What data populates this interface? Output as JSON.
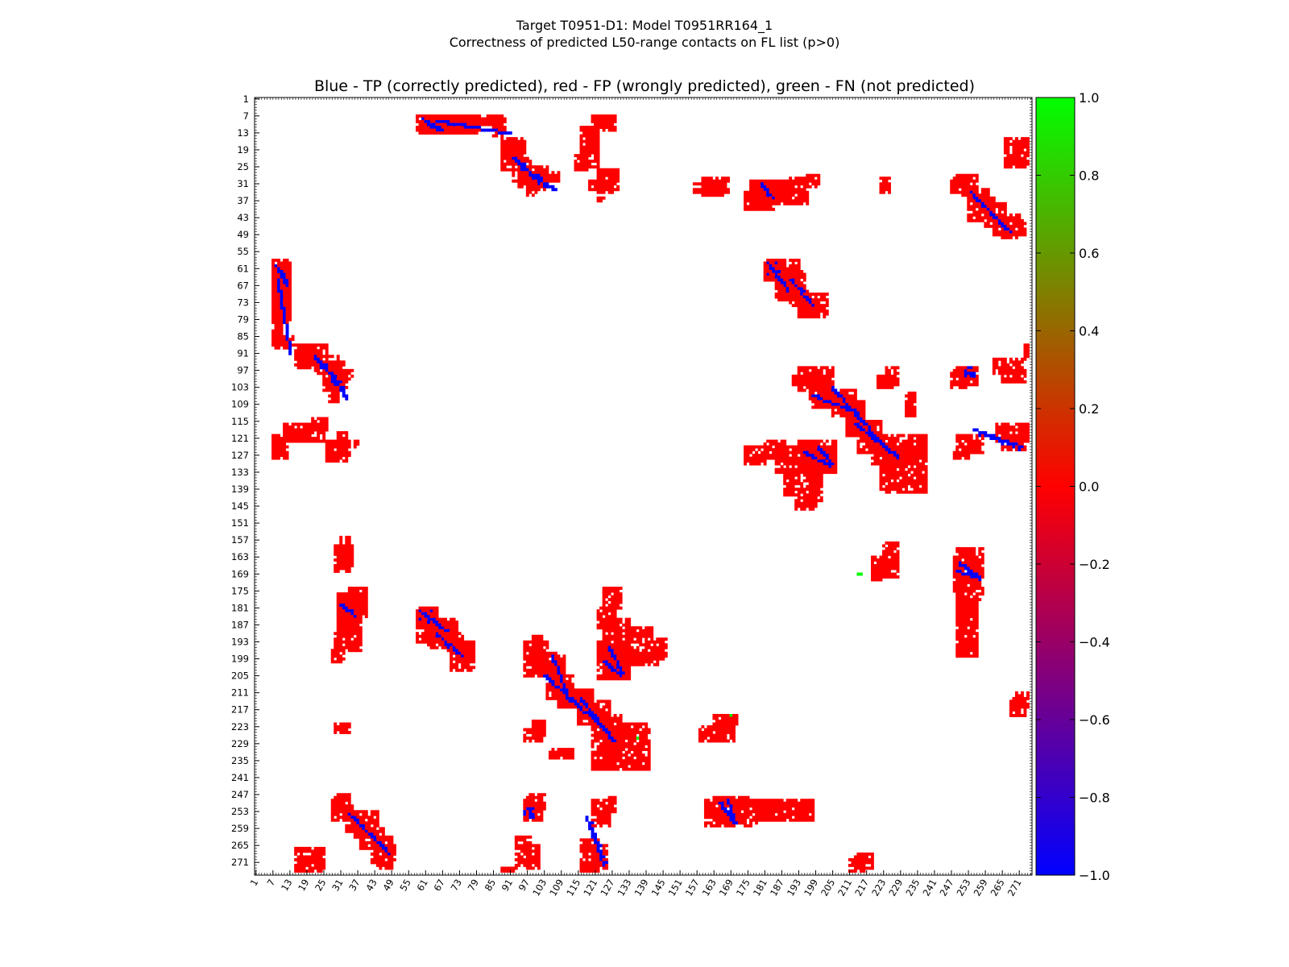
{
  "figure": {
    "suptitle_line1": "Target T0951-D1: Model T0951RR164_1",
    "suptitle_line2": "Correctness of predicted L50-range contacts on FL list (p>0)"
  },
  "chart_data": {
    "type": "heatmap",
    "title": "Blue - TP (correctly predicted), red - FP (wrongly predicted), green - FN (not predicted)",
    "xlabel": "",
    "ylabel": "",
    "xlim": [
      1,
      275
    ],
    "ylim": [
      1,
      275
    ],
    "y_inverted": true,
    "tick_labels": [
      "1",
      "7",
      "13",
      "19",
      "25",
      "31",
      "37",
      "43",
      "49",
      "55",
      "61",
      "67",
      "73",
      "79",
      "85",
      "91",
      "97",
      "103",
      "109",
      "115",
      "121",
      "127",
      "133",
      "139",
      "145",
      "151",
      "157",
      "163",
      "169",
      "175",
      "181",
      "187",
      "193",
      "199",
      "205",
      "211",
      "217",
      "223",
      "229",
      "235",
      "241",
      "247",
      "253",
      "259",
      "265",
      "271"
    ],
    "colorbar": {
      "min": -1.0,
      "max": 1.0,
      "ticks": [
        "1.0",
        "0.8",
        "0.6",
        "0.4",
        "0.2",
        "0.0",
        "−0.2",
        "−0.4",
        "−0.6",
        "−0.8",
        "−1.0"
      ],
      "colors": [
        "#00ff00",
        "#ff0000",
        "#0000ff"
      ]
    },
    "legend": {
      "TP": "#0000ff",
      "FP": "#ff0000",
      "FN": "#00ff00"
    },
    "point_value": {
      "FP": 0.0,
      "TP": -1.0,
      "FN": 1.0
    },
    "regions": [
      {
        "kind": "FP",
        "x": [
          58,
          80
        ],
        "y": [
          7,
          12
        ]
      },
      {
        "kind": "FP",
        "x": [
          62,
          72
        ],
        "y": [
          11,
          13
        ]
      },
      {
        "kind": "FP",
        "x": [
          80,
          89
        ],
        "y": [
          7,
          10
        ]
      },
      {
        "kind": "FP",
        "x": [
          88,
          96
        ],
        "y": [
          15,
          24
        ]
      },
      {
        "kind": "FP",
        "x": [
          94,
          104
        ],
        "y": [
          25,
          32
        ]
      },
      {
        "kind": "FP",
        "x": [
          97,
          100
        ],
        "y": [
          32,
          35
        ]
      },
      {
        "kind": "FP",
        "x": [
          116,
          122
        ],
        "y": [
          11,
          20
        ]
      },
      {
        "kind": "FP",
        "x": [
          120,
          126
        ],
        "y": [
          7,
          11
        ]
      },
      {
        "kind": "FP",
        "x": [
          114,
          118
        ],
        "y": [
          21,
          26
        ]
      },
      {
        "kind": "FP",
        "x": [
          119,
          127
        ],
        "y": [
          30,
          34
        ]
      },
      {
        "kind": "FP",
        "x": [
          121,
          125
        ],
        "y": [
          36,
          37
        ]
      },
      {
        "kind": "FP",
        "x": [
          156,
          167
        ],
        "y": [
          31,
          34
        ]
      },
      {
        "kind": "FP",
        "x": [
          178,
          190
        ],
        "y": [
          30,
          37
        ]
      },
      {
        "kind": "FP",
        "x": [
          174,
          184
        ],
        "y": [
          36,
          40
        ]
      },
      {
        "kind": "FP",
        "x": [
          190,
          196
        ],
        "y": [
          29,
          31
        ]
      },
      {
        "kind": "FP",
        "x": [
          222,
          225
        ],
        "y": [
          29,
          34
        ]
      },
      {
        "kind": "FP",
        "x": [
          247,
          253
        ],
        "y": [
          29,
          34
        ]
      },
      {
        "kind": "FP",
        "x": [
          253,
          262
        ],
        "y": [
          36,
          44
        ]
      },
      {
        "kind": "FP",
        "x": [
          262,
          273
        ],
        "y": [
          44,
          49
        ]
      },
      {
        "kind": "FP",
        "x": [
          266,
          273
        ],
        "y": [
          15,
          25
        ]
      },
      {
        "kind": "FP",
        "x": [
          182,
          188
        ],
        "y": [
          58,
          65
        ]
      },
      {
        "kind": "FP",
        "x": [
          186,
          192
        ],
        "y": [
          63,
          70
        ]
      },
      {
        "kind": "FP",
        "x": [
          190,
          196
        ],
        "y": [
          68,
          74
        ]
      },
      {
        "kind": "FP",
        "x": [
          195,
          200
        ],
        "y": [
          72,
          76
        ]
      },
      {
        "kind": "FP",
        "x": [
          7,
          13
        ],
        "y": [
          59,
          79
        ]
      },
      {
        "kind": "FP",
        "x": [
          8,
          10
        ],
        "y": [
          79,
          83
        ]
      },
      {
        "kind": "FP",
        "x": [
          8,
          14
        ],
        "y": [
          85,
          89
        ]
      },
      {
        "kind": "FP",
        "x": [
          17,
          26
        ],
        "y": [
          88,
          92
        ]
      },
      {
        "kind": "FP",
        "x": [
          22,
          30
        ],
        "y": [
          92,
          98
        ]
      },
      {
        "kind": "FP",
        "x": [
          27,
          33
        ],
        "y": [
          98,
          104
        ]
      },
      {
        "kind": "FP",
        "x": [
          27,
          30
        ],
        "y": [
          104,
          108
        ]
      },
      {
        "kind": "FP",
        "x": [
          7,
          12
        ],
        "y": [
          122,
          128
        ]
      },
      {
        "kind": "FP",
        "x": [
          12,
          25
        ],
        "y": [
          118,
          122
        ]
      },
      {
        "kind": "FP",
        "x": [
          26,
          33
        ],
        "y": [
          122,
          129
        ]
      },
      {
        "kind": "FP",
        "x": [
          191,
          200
        ],
        "y": [
          99,
          102
        ]
      },
      {
        "kind": "FP",
        "x": [
          197,
          205
        ],
        "y": [
          102,
          107
        ]
      },
      {
        "kind": "FP",
        "x": [
          198,
          212
        ],
        "y": [
          107,
          110
        ]
      },
      {
        "kind": "FP",
        "x": [
          205,
          214
        ],
        "y": [
          110,
          113
        ]
      },
      {
        "kind": "FP",
        "x": [
          210,
          216
        ],
        "y": [
          113,
          120
        ]
      },
      {
        "kind": "FP",
        "x": [
          214,
          222
        ],
        "y": [
          119,
          126
        ]
      },
      {
        "kind": "FP",
        "x": [
          219,
          233
        ],
        "y": [
          124,
          130
        ]
      },
      {
        "kind": "FP",
        "x": [
          222,
          226
        ],
        "y": [
          130,
          139
        ]
      },
      {
        "kind": "FP",
        "x": [
          174,
          182
        ],
        "y": [
          124,
          130
        ]
      },
      {
        "kind": "FP",
        "x": [
          185,
          206
        ],
        "y": [
          124,
          133
        ]
      },
      {
        "kind": "FP",
        "x": [
          188,
          200
        ],
        "y": [
          133,
          141
        ]
      },
      {
        "kind": "FP",
        "x": [
          192,
          199
        ],
        "y": [
          141,
          146
        ]
      },
      {
        "kind": "FP",
        "x": [
          221,
          226
        ],
        "y": [
          99,
          103
        ]
      },
      {
        "kind": "FP",
        "x": [
          231,
          234
        ],
        "y": [
          105,
          113
        ]
      },
      {
        "kind": "FP",
        "x": [
          247,
          252
        ],
        "y": [
          97,
          103
        ]
      },
      {
        "kind": "FP",
        "x": [
          248,
          253
        ],
        "y": [
          126,
          128
        ]
      },
      {
        "kind": "FP",
        "x": [
          29,
          35
        ],
        "y": [
          159,
          168
        ]
      },
      {
        "kind": "FP",
        "x": [
          30,
          38
        ],
        "y": [
          176,
          196
        ]
      },
      {
        "kind": "FP",
        "x": [
          28,
          32
        ],
        "y": [
          196,
          200
        ]
      },
      {
        "kind": "FP",
        "x": [
          34,
          40
        ],
        "y": [
          174,
          180
        ]
      },
      {
        "kind": "FP",
        "x": [
          58,
          65
        ],
        "y": [
          181,
          193
        ]
      },
      {
        "kind": "FP",
        "x": [
          62,
          72
        ],
        "y": [
          185,
          195
        ]
      },
      {
        "kind": "FP",
        "x": [
          70,
          78
        ],
        "y": [
          193,
          203
        ]
      },
      {
        "kind": "FP",
        "x": [
          96,
          104
        ],
        "y": [
          193,
          205
        ]
      },
      {
        "kind": "FP",
        "x": [
          104,
          110
        ],
        "y": [
          204,
          213
        ]
      },
      {
        "kind": "FP",
        "x": [
          108,
          118
        ],
        "y": [
          210,
          216
        ]
      },
      {
        "kind": "FP",
        "x": [
          115,
          122
        ],
        "y": [
          215,
          222
        ]
      },
      {
        "kind": "FP",
        "x": [
          122,
          128
        ],
        "y": [
          181,
          188
        ]
      },
      {
        "kind": "FP",
        "x": [
          122,
          133
        ],
        "y": [
          193,
          206
        ]
      },
      {
        "kind": "FP",
        "x": [
          130,
          143
        ],
        "y": [
          197,
          201
        ]
      },
      {
        "kind": "FP",
        "x": [
          120,
          126
        ],
        "y": [
          218,
          238
        ]
      },
      {
        "kind": "FP",
        "x": [
          126,
          140
        ],
        "y": [
          224,
          238
        ]
      },
      {
        "kind": "FP",
        "x": [
          96,
          102
        ],
        "y": [
          224,
          228
        ]
      },
      {
        "kind": "FP",
        "x": [
          158,
          170
        ],
        "y": [
          223,
          228
        ]
      },
      {
        "kind": "FP",
        "x": [
          248,
          256
        ],
        "y": [
          163,
          175
        ]
      },
      {
        "kind": "FP",
        "x": [
          249,
          255
        ],
        "y": [
          178,
          187
        ]
      },
      {
        "kind": "FP",
        "x": [
          250,
          254
        ],
        "y": [
          190,
          195
        ]
      },
      {
        "kind": "FP",
        "x": [
          219,
          224
        ],
        "y": [
          163,
          171
        ]
      },
      {
        "kind": "FP",
        "x": [
          28,
          35
        ],
        "y": [
          249,
          256
        ]
      },
      {
        "kind": "FP",
        "x": [
          33,
          40
        ],
        "y": [
          253,
          260
        ]
      },
      {
        "kind": "FP",
        "x": [
          38,
          46
        ],
        "y": [
          259,
          266
        ]
      },
      {
        "kind": "FP",
        "x": [
          42,
          50
        ],
        "y": [
          265,
          271
        ]
      },
      {
        "kind": "FP",
        "x": [
          16,
          25
        ],
        "y": [
          270,
          272
        ]
      },
      {
        "kind": "FP",
        "x": [
          15,
          25
        ],
        "y": [
          273,
          274
        ]
      },
      {
        "kind": "FP",
        "x": [
          96,
          102
        ],
        "y": [
          249,
          256
        ]
      },
      {
        "kind": "FP",
        "x": [
          93,
          98
        ],
        "y": [
          262,
          272
        ]
      },
      {
        "kind": "FP",
        "x": [
          88,
          93
        ],
        "y": [
          273,
          274
        ]
      },
      {
        "kind": "FP",
        "x": [
          120,
          126
        ],
        "y": [
          249,
          258
        ]
      },
      {
        "kind": "FP",
        "x": [
          116,
          122
        ],
        "y": [
          263,
          274
        ]
      },
      {
        "kind": "FP",
        "x": [
          160,
          178
        ],
        "y": [
          249,
          258
        ]
      },
      {
        "kind": "FP",
        "x": [
          178,
          192
        ],
        "y": [
          249,
          256
        ]
      },
      {
        "kind": "FP",
        "x": [
          192,
          198
        ],
        "y": [
          249,
          256
        ]
      },
      {
        "kind": "FP",
        "x": [
          211,
          216
        ],
        "y": [
          270,
          274
        ]
      },
      {
        "kind": "FP",
        "x": [
          265,
          273
        ],
        "y": [
          97,
          101
        ]
      },
      {
        "kind": "FP",
        "x": [
          265,
          273
        ],
        "y": [
          120,
          125
        ]
      },
      {
        "kind": "FP",
        "x": [
          268,
          273
        ],
        "y": [
          213,
          219
        ]
      },
      {
        "kind": "TP",
        "x": [
          65,
          90
        ],
        "y": [
          9,
          13
        ],
        "diag": true
      },
      {
        "kind": "TP",
        "x": [
          92,
          106
        ],
        "y": [
          22,
          33
        ],
        "diag": true
      },
      {
        "kind": "TP",
        "x": [
          182,
          186
        ],
        "y": [
          59,
          63
        ]
      },
      {
        "kind": "TP",
        "x": [
          190,
          198
        ],
        "y": [
          65,
          74
        ],
        "diag": true
      },
      {
        "kind": "TP",
        "x": [
          8,
          12
        ],
        "y": [
          60,
          67
        ],
        "diag": true
      },
      {
        "kind": "TP",
        "x": [
          24,
          32
        ],
        "y": [
          94,
          104
        ],
        "diag": true
      },
      {
        "kind": "TP",
        "x": [
          198,
          214
        ],
        "y": [
          106,
          112
        ],
        "diag": true
      },
      {
        "kind": "TP",
        "x": [
          213,
          228
        ],
        "y": [
          116,
          128
        ],
        "diag": true
      },
      {
        "kind": "TP",
        "x": [
          195,
          204
        ],
        "y": [
          126,
          131
        ],
        "diag": true
      },
      {
        "kind": "TP",
        "x": [
          31,
          36
        ],
        "y": [
          180,
          184
        ],
        "diag": true
      },
      {
        "kind": "TP",
        "x": [
          60,
          68
        ],
        "y": [
          183,
          189
        ],
        "diag": true
      },
      {
        "kind": "TP",
        "x": [
          103,
          122
        ],
        "y": [
          205,
          222
        ],
        "diag": true
      },
      {
        "kind": "TP",
        "x": [
          124,
          130
        ],
        "y": [
          200,
          205
        ],
        "diag": true
      },
      {
        "kind": "TP",
        "x": [
          249,
          255
        ],
        "y": [
          168,
          170
        ],
        "diag": true
      },
      {
        "kind": "TP",
        "x": [
          165,
          170
        ],
        "y": [
          250,
          257
        ],
        "diag": true
      },
      {
        "kind": "TP",
        "x": [
          34,
          48
        ],
        "y": [
          254,
          268
        ],
        "diag": true
      },
      {
        "kind": "TP",
        "x": [
          96,
          99
        ],
        "y": [
          252,
          256
        ]
      },
      {
        "kind": "TP",
        "x": [
          118,
          124
        ],
        "y": [
          255,
          272
        ],
        "diag": true
      }
    ],
    "fn_points": [
      [
        169,
        219
      ],
      [
        136,
        227
      ],
      [
        214,
        169
      ],
      [
        215,
        169
      ]
    ]
  }
}
